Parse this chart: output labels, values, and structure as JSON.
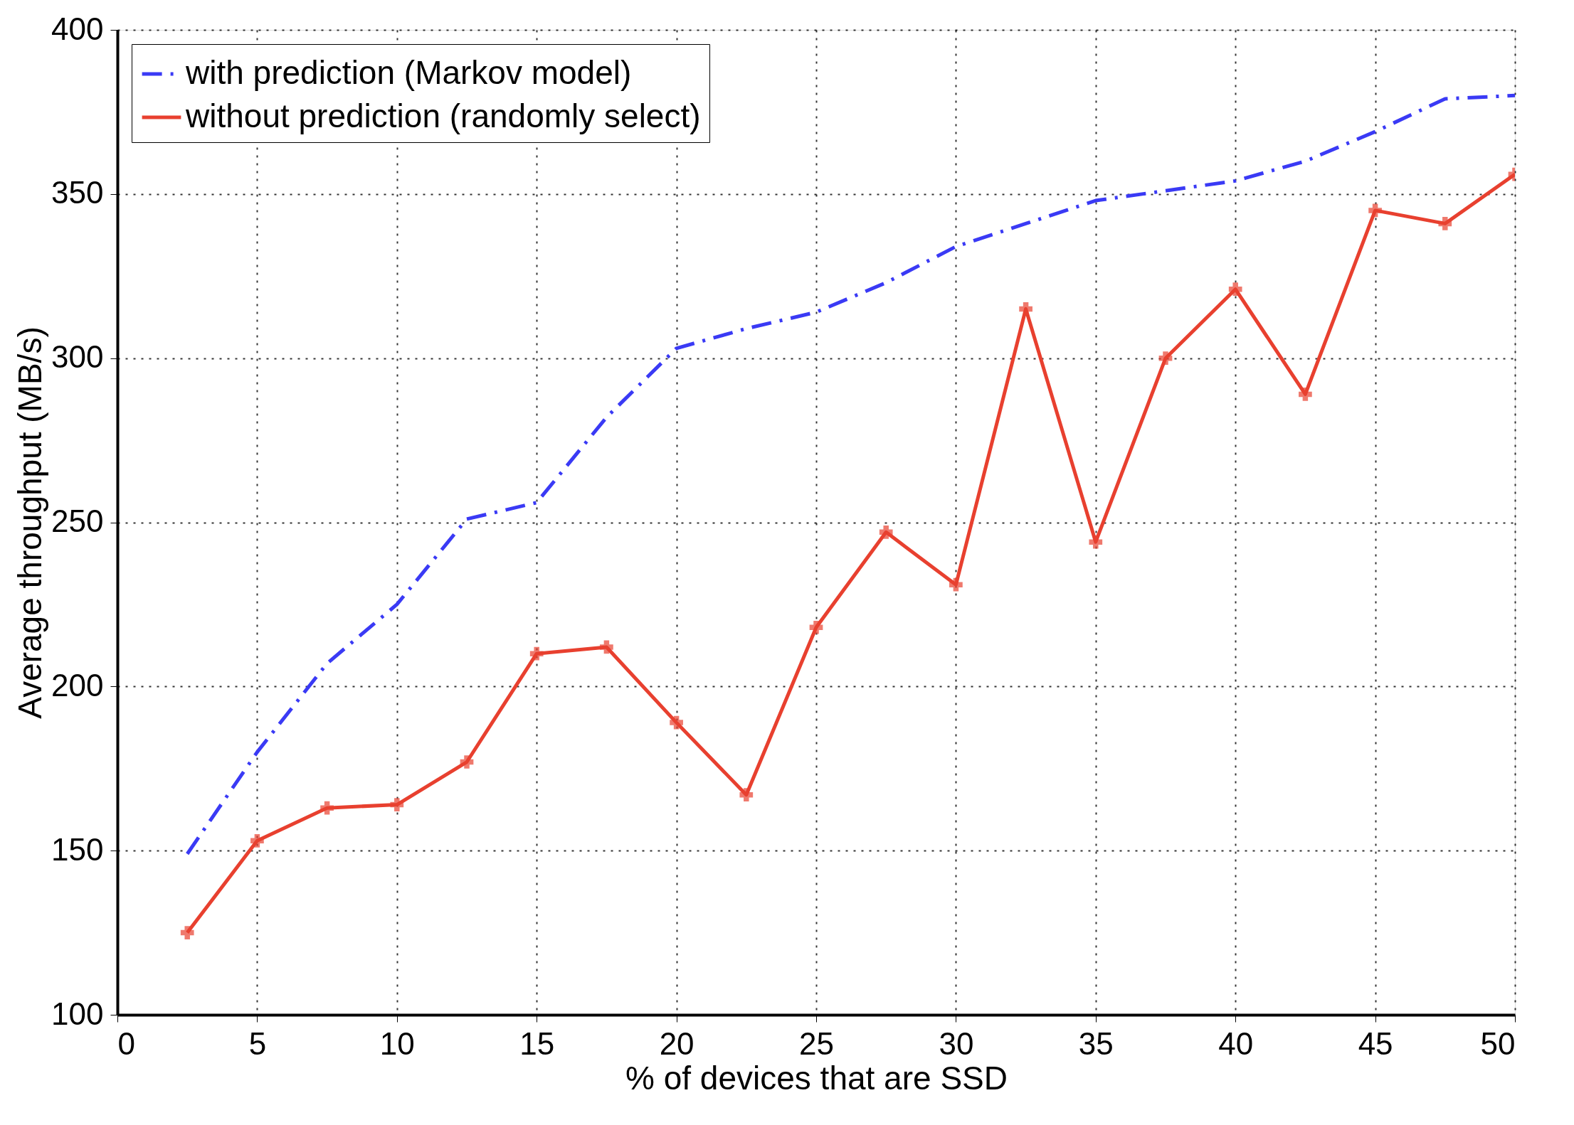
{
  "chart_data": {
    "type": "line",
    "xlabel": "% of devices that are SSD",
    "ylabel": "Average throughput (MB/s)",
    "x": [
      2.5,
      5,
      7.5,
      10,
      12.5,
      15,
      17.5,
      20,
      22.5,
      25,
      27.5,
      30,
      32.5,
      35,
      37.5,
      40,
      42.5,
      45,
      47.5,
      50
    ],
    "series": [
      {
        "name": "with prediction (Markov model)",
        "color": "#3a3af5",
        "line_style": "dashed",
        "marker": "none",
        "values": [
          149,
          180,
          207,
          225,
          251,
          256,
          282,
          303,
          309,
          314,
          323,
          334,
          341,
          348,
          351,
          354,
          360,
          369,
          379,
          380
        ]
      },
      {
        "name": "without prediction (randomly select)",
        "color": "#e8402f",
        "line_style": "solid",
        "marker": "cross",
        "values": [
          125,
          153,
          163,
          164,
          177,
          210,
          212,
          189,
          167,
          218,
          247,
          231,
          315,
          244,
          300,
          321,
          289,
          345,
          341,
          356
        ]
      }
    ],
    "xlim": [
      0,
      50
    ],
    "ylim": [
      100,
      400
    ],
    "xticks": [
      0,
      5,
      10,
      15,
      20,
      25,
      30,
      35,
      40,
      45,
      50
    ],
    "yticks": [
      100,
      150,
      200,
      250,
      300,
      350,
      400
    ],
    "grid": true,
    "legend": "top left"
  }
}
